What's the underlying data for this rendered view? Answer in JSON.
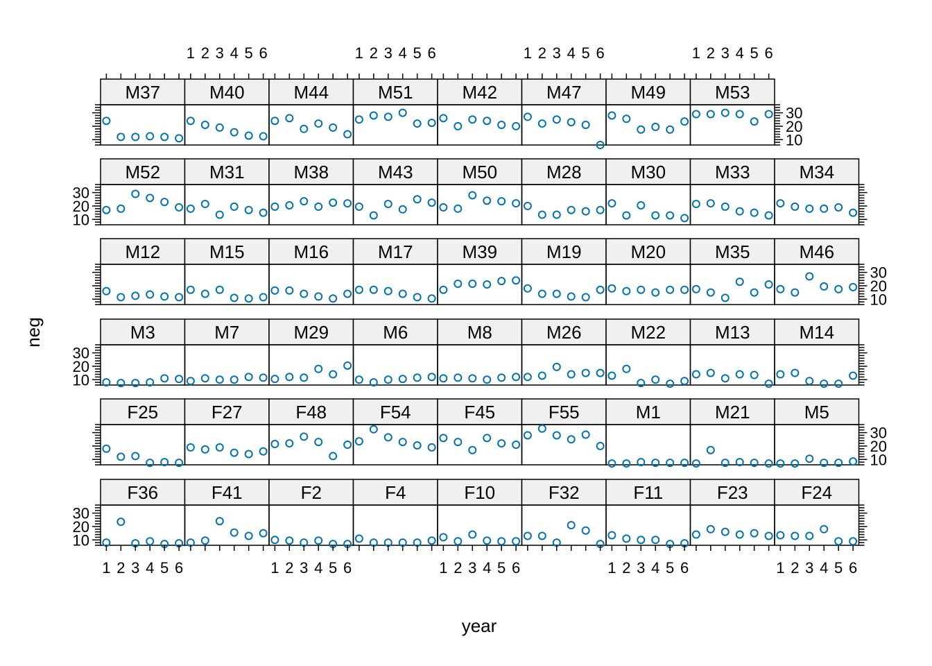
{
  "chart_data": {
    "type": "scatter",
    "layout": "lattice panel grid, 9 columns x 6 rows",
    "xlabel": "year",
    "ylabel": "neg",
    "xlim": [
      0.6,
      6.4
    ],
    "ylim": [
      6,
      36
    ],
    "x_ticks": [
      1,
      2,
      3,
      4,
      5,
      6
    ],
    "y_ticks": [
      10,
      20,
      30
    ],
    "x": [
      1,
      2,
      3,
      4,
      5,
      6
    ],
    "point_color": "#0072B2",
    "strip_color": "#f0f0f0",
    "rows": [
      [
        {
          "name": "M37",
          "values": [
            24,
            12,
            12,
            12.5,
            12,
            11
          ]
        },
        {
          "name": "M40",
          "values": [
            24,
            21,
            19,
            15.5,
            13,
            12.5
          ]
        },
        {
          "name": "M44",
          "values": [
            24,
            26,
            18,
            22,
            19,
            14
          ]
        },
        {
          "name": "M51",
          "values": [
            25,
            28,
            27,
            30,
            22,
            22.5
          ]
        },
        {
          "name": "M42",
          "values": [
            26,
            20,
            25,
            24,
            21,
            20
          ]
        },
        {
          "name": "M47",
          "values": [
            27,
            22,
            25,
            23,
            21,
            6
          ]
        },
        {
          "name": "M49",
          "values": [
            28,
            25.5,
            17.5,
            19.5,
            17.5,
            23.5
          ]
        },
        {
          "name": "M53",
          "values": [
            29,
            29,
            30,
            29,
            23.5,
            29
          ]
        }
      ],
      [
        {
          "name": "M52",
          "values": [
            17,
            18,
            29,
            26,
            23,
            19
          ]
        },
        {
          "name": "M31",
          "values": [
            18,
            21.5,
            13.5,
            19.5,
            17,
            15
          ]
        },
        {
          "name": "M38",
          "values": [
            19.5,
            20.5,
            23.5,
            19.5,
            22.5,
            22
          ]
        },
        {
          "name": "M43",
          "values": [
            19.5,
            13,
            21.5,
            17.5,
            25,
            22.5
          ]
        },
        {
          "name": "M50",
          "values": [
            19,
            18,
            28,
            24,
            23.5,
            22
          ]
        },
        {
          "name": "M28",
          "values": [
            20,
            13.5,
            13.5,
            17,
            16,
            17
          ]
        },
        {
          "name": "M30",
          "values": [
            22,
            13,
            20.5,
            13,
            13,
            11
          ]
        },
        {
          "name": "M33",
          "values": [
            21.5,
            22,
            19.5,
            16,
            15,
            13
          ]
        },
        {
          "name": "M34",
          "values": [
            22,
            19.5,
            18,
            18,
            19,
            15
          ]
        }
      ],
      [
        {
          "name": "M12",
          "values": [
            16,
            11.5,
            12.5,
            13.5,
            12,
            11.5
          ]
        },
        {
          "name": "M15",
          "values": [
            17,
            14,
            17,
            11,
            10.5,
            11.5
          ]
        },
        {
          "name": "M16",
          "values": [
            16.5,
            16.5,
            14,
            12,
            10.5,
            14
          ]
        },
        {
          "name": "M17",
          "values": [
            17,
            17,
            16,
            14,
            11.5,
            10.5
          ]
        },
        {
          "name": "M39",
          "values": [
            17,
            21.5,
            21.5,
            21,
            23.5,
            24
          ]
        },
        {
          "name": "M19",
          "values": [
            18,
            14,
            14,
            12,
            11.5,
            17
          ]
        },
        {
          "name": "M20",
          "values": [
            18,
            16,
            17,
            15,
            17,
            17
          ]
        },
        {
          "name": "M35",
          "values": [
            17.5,
            15,
            11,
            23,
            15,
            21
          ]
        },
        {
          "name": "M46",
          "values": [
            17.5,
            15,
            27,
            19.5,
            17.5,
            19
          ]
        }
      ],
      [
        {
          "name": "M3",
          "values": [
            8,
            7.5,
            7.5,
            8,
            11,
            10.5
          ]
        },
        {
          "name": "M7",
          "values": [
            9,
            11,
            10,
            10,
            12,
            11.5
          ]
        },
        {
          "name": "M29",
          "values": [
            10.5,
            12,
            11.5,
            18,
            14,
            20.5
          ]
        },
        {
          "name": "M6",
          "values": [
            10,
            8,
            10,
            10.5,
            11.5,
            12
          ]
        },
        {
          "name": "M8",
          "values": [
            11,
            11.5,
            11,
            10,
            11.5,
            12
          ]
        },
        {
          "name": "M26",
          "values": [
            12,
            13,
            19.5,
            14,
            15,
            15
          ]
        },
        {
          "name": "M22",
          "values": [
            13,
            18,
            7.5,
            10,
            7,
            9
          ]
        },
        {
          "name": "M13",
          "values": [
            14,
            15,
            11,
            14,
            13.5,
            7
          ]
        },
        {
          "name": "M14",
          "values": [
            14,
            15,
            9,
            7,
            7,
            13
          ]
        }
      ],
      [
        {
          "name": "F25",
          "values": [
            18,
            12,
            12.5,
            7.5,
            8,
            7.5
          ]
        },
        {
          "name": "F27",
          "values": [
            19,
            17.5,
            19,
            15,
            14,
            16
          ]
        },
        {
          "name": "F48",
          "values": [
            21.5,
            22,
            27,
            23,
            12.5,
            21
          ]
        },
        {
          "name": "F54",
          "values": [
            23.5,
            32.5,
            26.5,
            23,
            20.5,
            19
          ]
        },
        {
          "name": "F45",
          "values": [
            26,
            23,
            17,
            26,
            22,
            21
          ]
        },
        {
          "name": "F55",
          "values": [
            28,
            33,
            28,
            25,
            28.5,
            20
          ]
        },
        {
          "name": "M1",
          "values": [
            7,
            7,
            8,
            7.5,
            7.5,
            7.5
          ]
        },
        {
          "name": "M21",
          "values": [
            7,
            17,
            7.5,
            8,
            7.5,
            7
          ]
        },
        {
          "name": "M5",
          "values": [
            7,
            7,
            10.5,
            7.5,
            7.5,
            8.5
          ]
        }
      ],
      [
        {
          "name": "F36",
          "values": [
            8,
            23.5,
            7.5,
            9,
            7,
            7.5
          ]
        },
        {
          "name": "F41",
          "values": [
            8,
            9.5,
            24,
            15.5,
            13,
            15
          ]
        },
        {
          "name": "F2",
          "values": [
            10,
            9.5,
            8,
            9.5,
            7,
            7
          ]
        },
        {
          "name": "F4",
          "values": [
            11,
            8,
            8,
            8,
            8,
            9.5
          ]
        },
        {
          "name": "F10",
          "values": [
            12,
            9,
            14,
            9.5,
            9,
            9
          ]
        },
        {
          "name": "F32",
          "values": [
            13,
            13,
            8,
            21,
            17,
            7
          ]
        },
        {
          "name": "F11",
          "values": [
            13.5,
            11,
            10,
            10,
            7,
            7.5
          ]
        },
        {
          "name": "F23",
          "values": [
            14,
            18,
            16,
            14,
            15,
            13
          ]
        },
        {
          "name": "F24",
          "values": [
            13.5,
            13,
            13,
            18,
            9,
            9
          ]
        }
      ]
    ]
  }
}
